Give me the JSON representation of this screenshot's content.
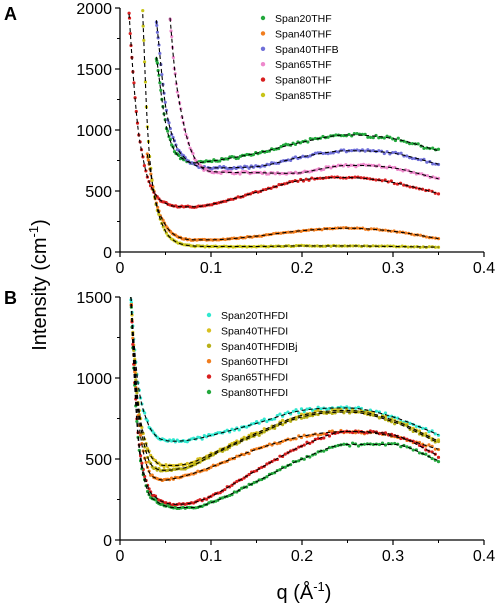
{
  "y_axis_title": "Intensity (cm",
  "y_axis_title_sup": "-1",
  "y_axis_title_end": ")",
  "x_axis_title": "q (Å",
  "x_axis_title_sup": "-1",
  "x_axis_title_end": ")",
  "chart_data": [
    {
      "panel": "A",
      "type": "scatter",
      "xlim": [
        0,
        0.4
      ],
      "ylim": [
        0,
        2000
      ],
      "xticks": [
        "0",
        "0.1",
        "0.2",
        "0.3",
        "0.4"
      ],
      "yticks": [
        "0",
        "500",
        "1000",
        "1500",
        "2000"
      ],
      "legend_position": "top-right",
      "fit_line_style": "black dashed",
      "series": [
        {
          "name": "Span20THF",
          "color": "#22a83c",
          "x": [
            0.04,
            0.05,
            0.06,
            0.07,
            0.08,
            0.1,
            0.15,
            0.2,
            0.25,
            0.3,
            0.35
          ],
          "y": [
            1600,
            1060,
            830,
            760,
            730,
            745,
            810,
            900,
            960,
            930,
            830
          ]
        },
        {
          "name": "Span40THF",
          "color": "#f07d1e",
          "x": [
            0.03,
            0.04,
            0.05,
            0.06,
            0.07,
            0.08,
            0.1,
            0.15,
            0.2,
            0.25,
            0.3,
            0.35
          ],
          "y": [
            800,
            400,
            220,
            140,
            110,
            100,
            100,
            130,
            175,
            195,
            170,
            110
          ]
        },
        {
          "name": "Span40THFB",
          "color": "#6f6fd8",
          "x": [
            0.04,
            0.05,
            0.06,
            0.07,
            0.08,
            0.1,
            0.15,
            0.2,
            0.25,
            0.3,
            0.35
          ],
          "y": [
            1900,
            1200,
            900,
            780,
            720,
            690,
            700,
            780,
            830,
            810,
            720
          ]
        },
        {
          "name": "Span65THF",
          "color": "#ee88cc",
          "x": [
            0.055,
            0.06,
            0.07,
            0.08,
            0.1,
            0.15,
            0.18,
            0.2,
            0.22,
            0.25,
            0.3,
            0.35
          ],
          "y": [
            1920,
            1500,
            1050,
            800,
            660,
            650,
            645,
            650,
            680,
            710,
            690,
            600
          ]
        },
        {
          "name": "Span80THF",
          "color": "#d81e1e",
          "x": [
            0.01,
            0.015,
            0.02,
            0.025,
            0.03,
            0.04,
            0.05,
            0.06,
            0.08,
            0.1,
            0.15,
            0.2,
            0.25,
            0.3,
            0.35
          ],
          "y": [
            1950,
            1400,
            1000,
            780,
            620,
            460,
            400,
            375,
            370,
            390,
            490,
            590,
            610,
            570,
            480
          ]
        },
        {
          "name": "Span85THF",
          "color": "#c8c418",
          "x": [
            0.025,
            0.03,
            0.035,
            0.04,
            0.05,
            0.06,
            0.07,
            0.08,
            0.1,
            0.15,
            0.2,
            0.25,
            0.3,
            0.35
          ],
          "y": [
            1950,
            1050,
            600,
            380,
            170,
            90,
            60,
            50,
            45,
            45,
            50,
            50,
            45,
            40
          ]
        }
      ]
    },
    {
      "panel": "B",
      "type": "scatter",
      "xlim": [
        0,
        0.4
      ],
      "ylim": [
        0,
        1500
      ],
      "xticks": [
        "0",
        "0.1",
        "0.2",
        "0.3",
        "0.4"
      ],
      "yticks": [
        "0",
        "500",
        "1000",
        "1500"
      ],
      "legend_position": "top-center",
      "fit_line_style": "black dashed",
      "series": [
        {
          "name": "Span20THFDI",
          "color": "#30e8d0",
          "x": [
            0.012,
            0.015,
            0.02,
            0.03,
            0.04,
            0.05,
            0.06,
            0.08,
            0.1,
            0.15,
            0.2,
            0.25,
            0.3,
            0.35
          ],
          "y": [
            1500,
            1250,
            960,
            730,
            640,
            615,
            610,
            620,
            645,
            720,
            800,
            815,
            760,
            650
          ]
        },
        {
          "name": "Span40THFDI",
          "color": "#d8c020",
          "x": [
            0.012,
            0.015,
            0.02,
            0.03,
            0.04,
            0.05,
            0.06,
            0.08,
            0.1,
            0.15,
            0.2,
            0.25,
            0.3,
            0.35
          ],
          "y": [
            1500,
            1200,
            850,
            570,
            480,
            460,
            460,
            480,
            530,
            660,
            770,
            800,
            740,
            610
          ]
        },
        {
          "name": "Span40THFDIBj",
          "color": "#b8b018",
          "x": [
            0.012,
            0.015,
            0.02,
            0.03,
            0.04,
            0.05,
            0.06,
            0.08,
            0.1,
            0.15,
            0.2,
            0.25,
            0.3,
            0.35
          ],
          "y": [
            1500,
            1190,
            820,
            520,
            440,
            430,
            435,
            460,
            520,
            650,
            760,
            790,
            730,
            600
          ]
        },
        {
          "name": "Span60THFDI",
          "color": "#f07d1e",
          "x": [
            0.012,
            0.015,
            0.02,
            0.03,
            0.04,
            0.05,
            0.06,
            0.08,
            0.1,
            0.15,
            0.2,
            0.25,
            0.3,
            0.35
          ],
          "y": [
            1500,
            1150,
            760,
            450,
            380,
            370,
            380,
            410,
            450,
            560,
            640,
            670,
            640,
            560
          ]
        },
        {
          "name": "Span65THFDI",
          "color": "#d81e1e",
          "x": [
            0.012,
            0.015,
            0.02,
            0.03,
            0.04,
            0.05,
            0.06,
            0.08,
            0.1,
            0.15,
            0.2,
            0.25,
            0.3,
            0.35
          ],
          "y": [
            1500,
            1100,
            650,
            340,
            260,
            230,
            220,
            230,
            270,
            430,
            580,
            670,
            650,
            520
          ]
        },
        {
          "name": "Span80THFDI",
          "color": "#22a83c",
          "x": [
            0.012,
            0.015,
            0.02,
            0.03,
            0.04,
            0.05,
            0.06,
            0.08,
            0.1,
            0.15,
            0.2,
            0.25,
            0.3,
            0.35
          ],
          "y": [
            1500,
            1080,
            620,
            310,
            240,
            210,
            200,
            200,
            230,
            360,
            500,
            590,
            590,
            490
          ]
        }
      ]
    }
  ]
}
